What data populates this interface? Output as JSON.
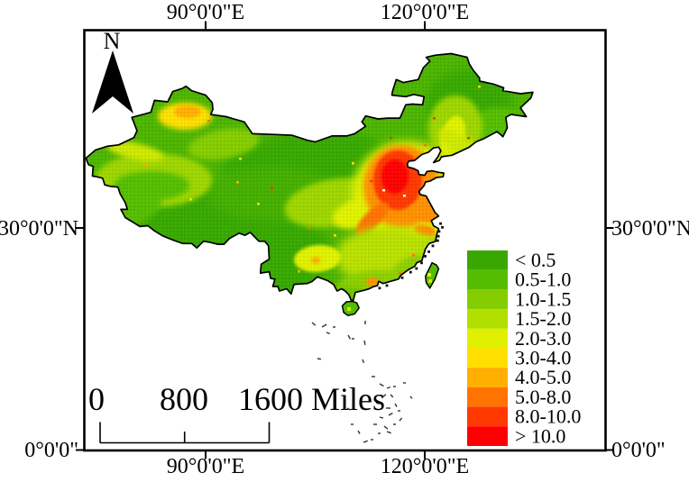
{
  "figure": {
    "background_color": "#FFFFFF",
    "frame_color": "#000000"
  },
  "axis": {
    "top_left_lon": "90°0'0\"E",
    "top_right_lon": "120°0'0\"E",
    "bottom_left_lon": "90°0'0\"E",
    "bottom_right_lon": "120°0'0\"E",
    "left_lat": "30°0'0\"N",
    "right_lat": "30°0'0\"N",
    "left_bottom_lat": "0°0'0\"",
    "right_bottom_lat": "0°0'0\""
  },
  "north_arrow": {
    "label": "N"
  },
  "scale_bar": {
    "tick_0": "0",
    "tick_800": "800",
    "tick_1600": "1600",
    "unit": "Miles"
  },
  "legend": {
    "classes": [
      {
        "label": "< 0.5",
        "color": "#38A800"
      },
      {
        "label": "0.5-1.0",
        "color": "#55BD00"
      },
      {
        "label": "1.0-1.5",
        "color": "#85CC00"
      },
      {
        "label": "1.5-2.0",
        "color": "#B0DF00"
      },
      {
        "label": "2.0-3.0",
        "color": "#E0F000"
      },
      {
        "label": "3.0-4.0",
        "color": "#FFDF00"
      },
      {
        "label": "4.0-5.0",
        "color": "#FFAF00"
      },
      {
        "label": "5.0-8.0",
        "color": "#FF7300"
      },
      {
        "label": "8.0-10.0",
        "color": "#FF3900"
      },
      {
        "label": "> 10.0",
        "color": "#FF0000"
      }
    ]
  },
  "chart_data": {
    "type": "heatmap",
    "region": "choropleth raster map",
    "class_bins": [
      "< 0.5",
      "0.5-1.0",
      "1.0-1.5",
      "1.5-2.0",
      "2.0-3.0",
      "3.0-4.0",
      "4.0-5.0",
      "5.0-8.0",
      "8.0-10.0",
      "> 10.0"
    ],
    "class_colors": [
      "#38A800",
      "#55BD00",
      "#85CC00",
      "#B0DF00",
      "#E0F000",
      "#FFDF00",
      "#FFAF00",
      "#FF7300",
      "#FF3900",
      "#FF0000"
    ],
    "x_tick_labels": [
      "90°0'0\"E",
      "120°0'0\"E"
    ],
    "y_tick_labels": [
      "30°0'0\"N",
      "0°0'0\""
    ],
    "scale_bar": {
      "ticks": [
        0,
        800,
        1600
      ],
      "unit": "Miles"
    },
    "legend_position": "bottom-right",
    "grid": false
  }
}
